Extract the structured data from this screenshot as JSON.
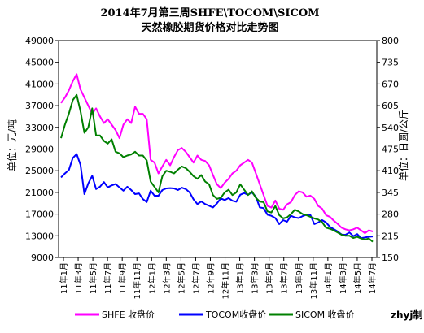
{
  "chart_data": {
    "type": "line",
    "title": "2014年7月第三周SHFE\\TOCOM\\SICOM",
    "subtitle": "天然橡胶期货价格对比走势图",
    "ylabel_left": "单位：元/吨",
    "ylabel_right": "单位：日圆/公斤",
    "ylim_left": [
      9000,
      49000
    ],
    "ylim_right": [
      150,
      800
    ],
    "yticks_left": [
      "9000",
      "13000",
      "17000",
      "21000",
      "25000",
      "29000",
      "33000",
      "37000",
      "41000",
      "45000",
      "49000"
    ],
    "yticks_right": [
      "150",
      "215",
      "280",
      "345",
      "410",
      "475",
      "540",
      "605",
      "670",
      "735",
      "800"
    ],
    "xticks": [
      "11年1月",
      "11年3月",
      "11年5月",
      "11年7月",
      "11年9月",
      "11年11月",
      "12年1月",
      "12年3月",
      "12年5月",
      "12年7月",
      "12年9月",
      "12年11月",
      "13年1月",
      "13年3月",
      "13年5月",
      "13年7月",
      "13年9月",
      "13年11月",
      "14年1月",
      "14年3月",
      "14年5月",
      "14年7月"
    ],
    "grid": false,
    "legend_position": "bottom",
    "credit": "zhyj制",
    "series": [
      {
        "name": "SHFE 收盘价",
        "color": "#ff00ff",
        "values": [
          37500,
          38500,
          39800,
          41500,
          42800,
          40000,
          38500,
          37000,
          35500,
          36500,
          35000,
          33800,
          34500,
          33500,
          32500,
          31000,
          33500,
          34500,
          33800,
          36800,
          35500,
          35500,
          34500,
          27000,
          26500,
          24500,
          25800,
          27000,
          26000,
          27500,
          28800,
          29200,
          28500,
          27500,
          26500,
          27800,
          27000,
          26800,
          26000,
          24200,
          22500,
          21800,
          22800,
          23500,
          24500,
          25000,
          26000,
          26500,
          27000,
          26500,
          24500,
          22500,
          20500,
          18500,
          18200,
          19500,
          18000,
          17800,
          18800,
          19200,
          20500,
          21200,
          21000,
          20200,
          20400,
          19800,
          18500,
          18000,
          16800,
          16500,
          15800,
          15200,
          14500,
          14200,
          14000,
          14200,
          14500,
          14000,
          13500,
          14000,
          13800
        ]
      },
      {
        "name": "TOCOM收盘价",
        "color": "#0000ff",
        "values": [
          390,
          402,
          412,
          448,
          460,
          428,
          340,
          372,
          395,
          355,
          362,
          376,
          360,
          366,
          370,
          360,
          350,
          362,
          352,
          340,
          342,
          325,
          316,
          350,
          335,
          335,
          352,
          357,
          358,
          357,
          352,
          359,
          355,
          345,
          324,
          310,
          318,
          310,
          305,
          300,
          312,
          327,
          322,
          328,
          320,
          317,
          338,
          343,
          338,
          345,
          332,
          300,
          298,
          278,
          275,
          268,
          250,
          262,
          257,
          275,
          270,
          268,
          274,
          278,
          277,
          250,
          255,
          262,
          255,
          242,
          235,
          228,
          219,
          218,
          225,
          214,
          220,
          208,
          210,
          212,
          213
        ]
      },
      {
        "name": "SICOM 收盘价",
        "color": "#008000",
        "values": [
          31000,
          33500,
          35500,
          38000,
          39000,
          36000,
          32000,
          33000,
          36500,
          31500,
          31500,
          30500,
          30000,
          30800,
          28500,
          28200,
          27500,
          27800,
          28000,
          28500,
          27800,
          27800,
          26900,
          23000,
          22000,
          21000,
          24000,
          25000,
          24800,
          24500,
          25200,
          25800,
          25500,
          24800,
          24000,
          23500,
          24200,
          23000,
          22500,
          20500,
          19800,
          20000,
          21000,
          21500,
          20500,
          21000,
          22500,
          21500,
          20500,
          21200,
          20000,
          19300,
          19200,
          17500,
          17300,
          18500,
          16800,
          16200,
          16400,
          17000,
          17800,
          17500,
          17000,
          16800,
          16500,
          16200,
          16000,
          15500,
          14500,
          14300,
          14000,
          13600,
          13200,
          13000,
          13000,
          12600,
          12800,
          12500,
          12300,
          12500,
          11900
        ]
      }
    ]
  }
}
